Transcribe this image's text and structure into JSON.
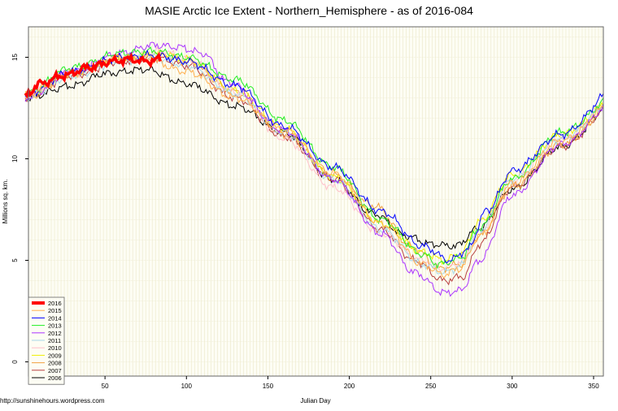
{
  "chart_data": {
    "type": "line",
    "title": "MASIE Arctic Ice Extent - Northern_Hemisphere - as of 2016-084",
    "xlabel": "Julian Day",
    "ylabel": "Millions sq. km.",
    "footer": "http://sunshinehours.wordpress.com",
    "xlim": [
      3,
      356
    ],
    "ylim": [
      -0.7,
      16.5
    ],
    "xticks": [
      50,
      100,
      150,
      200,
      250,
      300,
      350
    ],
    "yticks": [
      0,
      5,
      10,
      15
    ],
    "grid": true,
    "legend_placement": "bottom-left",
    "series": [
      {
        "name": "2016",
        "color": "#ff0000",
        "width": 3.5,
        "points": [
          [
            1,
            13.1
          ],
          [
            10,
            13.7
          ],
          [
            25,
            14.1
          ],
          [
            40,
            14.5
          ],
          [
            55,
            14.8
          ],
          [
            65,
            14.9
          ],
          [
            75,
            14.8
          ],
          [
            84,
            14.9
          ]
        ]
      },
      {
        "name": "2015",
        "color": "#ffb050",
        "width": 1,
        "points": [
          [
            1,
            13.2
          ],
          [
            30,
            14.2
          ],
          [
            60,
            15.0
          ],
          [
            75,
            14.9
          ],
          [
            100,
            14.3
          ],
          [
            130,
            13.0
          ],
          [
            160,
            11.4
          ],
          [
            190,
            9.3
          ],
          [
            220,
            6.8
          ],
          [
            245,
            4.8
          ],
          [
            258,
            4.3
          ],
          [
            268,
            4.6
          ],
          [
            280,
            6.2
          ],
          [
            300,
            8.8
          ],
          [
            330,
            10.9
          ],
          [
            365,
            12.9
          ]
        ]
      },
      {
        "name": "2014",
        "color": "#0000ff",
        "width": 1,
        "points": [
          [
            1,
            13.2
          ],
          [
            30,
            14.3
          ],
          [
            60,
            15.0
          ],
          [
            80,
            15.1
          ],
          [
            100,
            14.8
          ],
          [
            130,
            13.6
          ],
          [
            160,
            11.6
          ],
          [
            190,
            9.6
          ],
          [
            220,
            7.4
          ],
          [
            245,
            5.7
          ],
          [
            262,
            5.0
          ],
          [
            272,
            5.5
          ],
          [
            285,
            7.5
          ],
          [
            300,
            9.4
          ],
          [
            330,
            11.2
          ],
          [
            365,
            13.5
          ]
        ]
      },
      {
        "name": "2013",
        "color": "#22ee22",
        "width": 1,
        "points": [
          [
            1,
            13.2
          ],
          [
            30,
            14.5
          ],
          [
            60,
            15.2
          ],
          [
            80,
            15.3
          ],
          [
            100,
            15.0
          ],
          [
            130,
            13.9
          ],
          [
            160,
            11.9
          ],
          [
            190,
            9.6
          ],
          [
            220,
            7.0
          ],
          [
            245,
            5.3
          ],
          [
            255,
            4.8
          ],
          [
            268,
            5.1
          ],
          [
            280,
            6.6
          ],
          [
            300,
            9.0
          ],
          [
            330,
            11.3
          ],
          [
            365,
            13.1
          ]
        ]
      },
      {
        "name": "2012",
        "color": "#aa33ff",
        "width": 1,
        "points": [
          [
            1,
            13.0
          ],
          [
            30,
            14.3
          ],
          [
            60,
            15.2
          ],
          [
            80,
            15.6
          ],
          [
            95,
            15.5
          ],
          [
            110,
            15.2
          ],
          [
            125,
            13.8
          ],
          [
            160,
            11.4
          ],
          [
            190,
            9.0
          ],
          [
            220,
            6.3
          ],
          [
            240,
            4.4
          ],
          [
            258,
            3.4
          ],
          [
            268,
            3.5
          ],
          [
            280,
            5.0
          ],
          [
            300,
            8.2
          ],
          [
            330,
            10.7
          ],
          [
            365,
            12.9
          ]
        ]
      },
      {
        "name": "2011",
        "color": "#a8d8e8",
        "width": 1,
        "points": [
          [
            1,
            13.0
          ],
          [
            30,
            14.1
          ],
          [
            60,
            14.8
          ],
          [
            80,
            15.0
          ],
          [
            100,
            14.6
          ],
          [
            130,
            13.2
          ],
          [
            160,
            11.3
          ],
          [
            190,
            9.0
          ],
          [
            220,
            6.5
          ],
          [
            245,
            4.8
          ],
          [
            258,
            4.4
          ],
          [
            268,
            4.7
          ],
          [
            280,
            6.5
          ],
          [
            300,
            9.0
          ],
          [
            330,
            11.0
          ],
          [
            365,
            13.0
          ]
        ]
      },
      {
        "name": "2010",
        "color": "#ffc0cb",
        "width": 1,
        "points": [
          [
            1,
            13.1
          ],
          [
            30,
            14.2
          ],
          [
            60,
            14.9
          ],
          [
            85,
            15.3
          ],
          [
            100,
            14.9
          ],
          [
            130,
            13.3
          ],
          [
            160,
            11.0
          ],
          [
            190,
            8.6
          ],
          [
            220,
            6.3
          ],
          [
            245,
            5.0
          ],
          [
            258,
            4.6
          ],
          [
            268,
            4.9
          ],
          [
            280,
            6.4
          ],
          [
            300,
            8.9
          ],
          [
            330,
            11.0
          ],
          [
            365,
            13.0
          ]
        ]
      },
      {
        "name": "2009",
        "color": "#eeee00",
        "width": 1,
        "points": [
          [
            1,
            13.1
          ],
          [
            30,
            14.2
          ],
          [
            60,
            14.9
          ],
          [
            85,
            15.2
          ],
          [
            100,
            14.9
          ],
          [
            130,
            13.4
          ],
          [
            160,
            11.5
          ],
          [
            190,
            9.1
          ],
          [
            220,
            6.8
          ],
          [
            245,
            5.4
          ],
          [
            258,
            5.0
          ],
          [
            268,
            5.3
          ],
          [
            280,
            6.9
          ],
          [
            300,
            9.2
          ],
          [
            330,
            11.2
          ],
          [
            365,
            13.0
          ]
        ]
      },
      {
        "name": "2008",
        "color": "#f0a040",
        "width": 1,
        "points": [
          [
            1,
            13.0
          ],
          [
            30,
            14.2
          ],
          [
            60,
            15.0
          ],
          [
            85,
            15.1
          ],
          [
            100,
            14.8
          ],
          [
            130,
            13.3
          ],
          [
            160,
            11.2
          ],
          [
            190,
            9.2
          ],
          [
            215,
            7.7
          ],
          [
            240,
            5.6
          ],
          [
            255,
            4.6
          ],
          [
            268,
            4.8
          ],
          [
            280,
            6.2
          ],
          [
            300,
            8.6
          ],
          [
            330,
            10.7
          ],
          [
            365,
            12.8
          ]
        ]
      },
      {
        "name": "2007",
        "color": "#b84040",
        "width": 1,
        "points": [
          [
            1,
            13.0
          ],
          [
            30,
            14.1
          ],
          [
            60,
            14.8
          ],
          [
            80,
            15.0
          ],
          [
            100,
            14.6
          ],
          [
            130,
            13.0
          ],
          [
            160,
            11.1
          ],
          [
            190,
            9.0
          ],
          [
            220,
            6.5
          ],
          [
            240,
            5.0
          ],
          [
            258,
            4.0
          ],
          [
            270,
            4.2
          ],
          [
            280,
            5.8
          ],
          [
            300,
            8.6
          ],
          [
            330,
            10.6
          ],
          [
            365,
            12.8
          ]
        ]
      },
      {
        "name": "2006",
        "color": "#000000",
        "width": 1,
        "points": [
          [
            1,
            13.0
          ],
          [
            30,
            13.6
          ],
          [
            50,
            14.2
          ],
          [
            75,
            14.4
          ],
          [
            100,
            13.7
          ],
          [
            130,
            12.6
          ],
          [
            160,
            11.3
          ],
          [
            190,
            9.0
          ],
          [
            215,
            7.3
          ],
          [
            235,
            6.2
          ],
          [
            250,
            5.8
          ],
          [
            265,
            5.7
          ],
          [
            280,
            6.6
          ],
          [
            300,
            8.5
          ],
          [
            330,
            10.6
          ],
          [
            365,
            12.9
          ]
        ]
      }
    ]
  }
}
